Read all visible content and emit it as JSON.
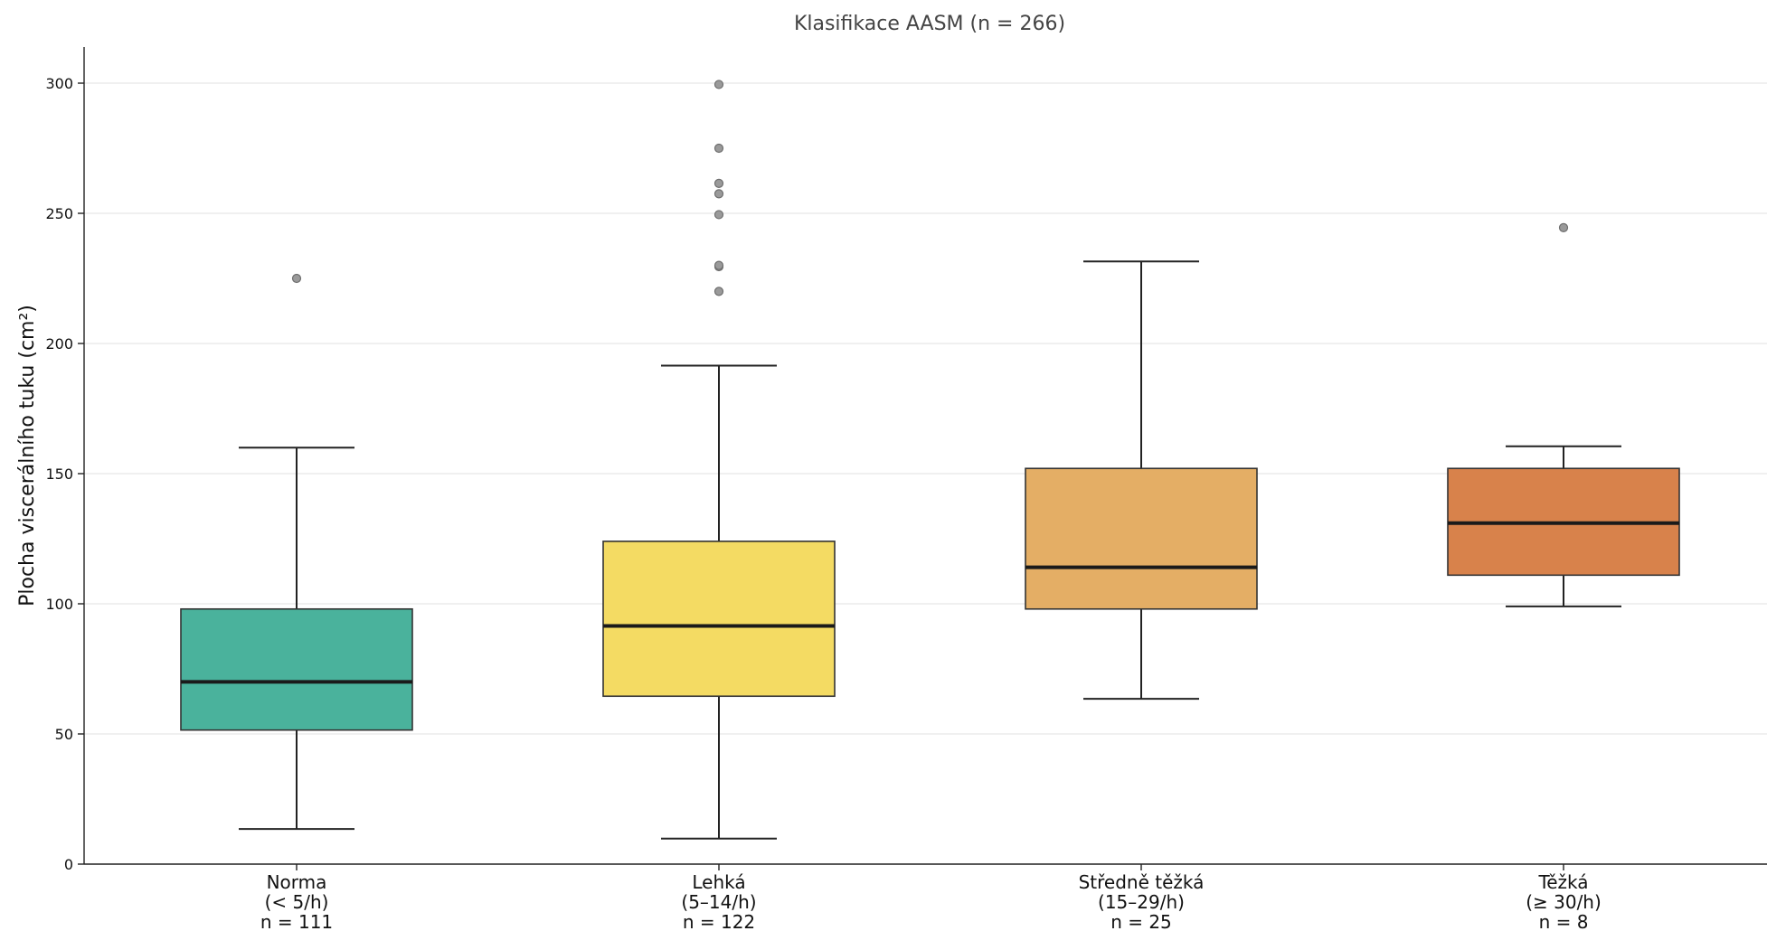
{
  "chart_data": {
    "type": "box",
    "title": "Klasifikace AASM (n = 266)",
    "xlabel": "",
    "ylabel": "Plocha viscerálního tuku (cm²)",
    "ylim": [
      0,
      314
    ],
    "yticks": [
      0,
      50,
      100,
      150,
      200,
      250,
      300
    ],
    "grid": "horizontal",
    "categories": [
      {
        "label_lines": [
          "Norma",
          "(< 5/h)",
          "n = 111"
        ],
        "color": "#4ab29c",
        "whisker_low": 13.5,
        "q1": 51.5,
        "median": 70,
        "q3": 98,
        "whisker_high": 160,
        "outliers": [
          225
        ]
      },
      {
        "label_lines": [
          "Lehká",
          "(5–14/h)",
          "n = 122"
        ],
        "color": "#f4db63",
        "whisker_low": 9.8,
        "q1": 64.5,
        "median": 91.5,
        "q3": 124,
        "whisker_high": 191.5,
        "outliers": [
          220,
          229.5,
          230,
          249.5,
          257.5,
          261.5,
          275,
          299.5
        ]
      },
      {
        "label_lines": [
          "Středně těžká",
          "(15–29/h)",
          "n = 25"
        ],
        "color": "#e4ae65",
        "whisker_low": 63.5,
        "q1": 98,
        "median": 114,
        "q3": 152,
        "whisker_high": 231.5,
        "outliers": []
      },
      {
        "label_lines": [
          "Těžká",
          "(≥ 30/h)",
          "n = 8"
        ],
        "color": "#d8824b",
        "whisker_low": 99,
        "q1": 111,
        "median": 131,
        "q3": 152,
        "whisker_high": 160.5,
        "outliers": [
          244.5
        ]
      }
    ]
  }
}
